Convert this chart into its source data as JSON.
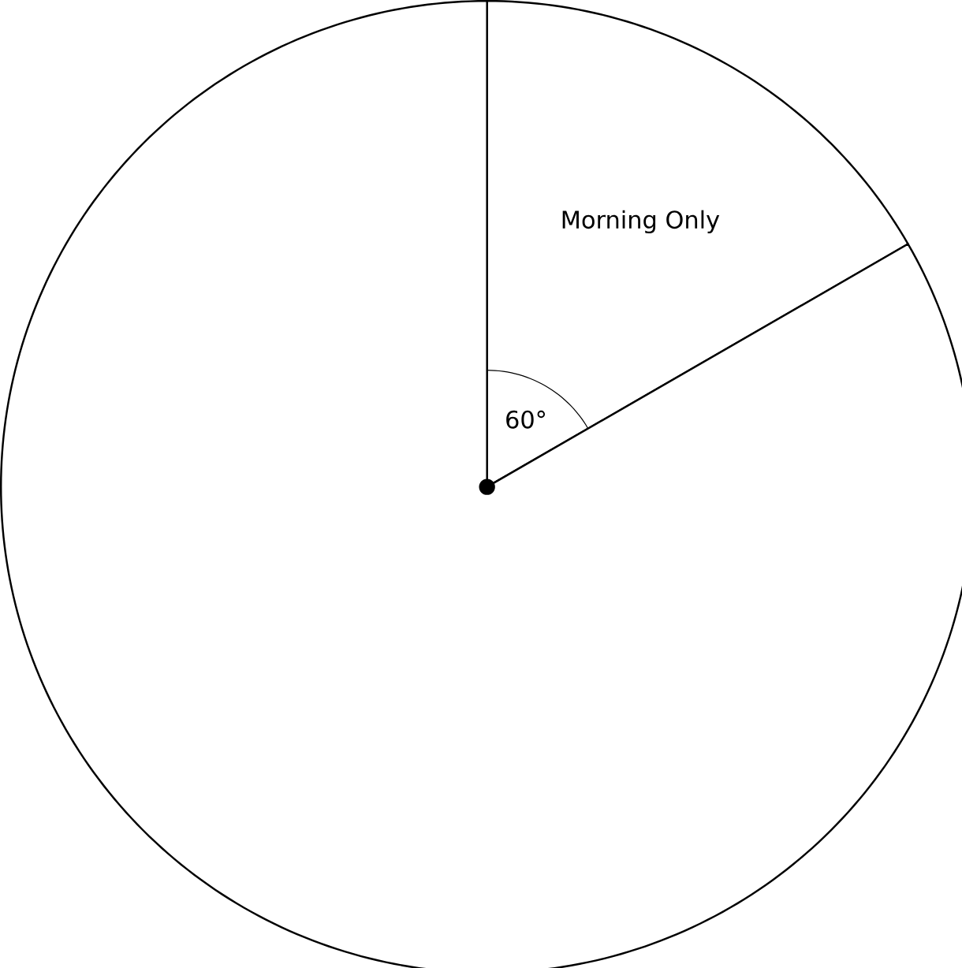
{
  "chart_data": {
    "type": "pie",
    "categories": [
      "Morning Only",
      null
    ],
    "values": [
      16.67,
      83.33
    ],
    "colors": [
      "#ffffff",
      "#ffffff"
    ],
    "annotations": [
      "60°"
    ]
  }
}
